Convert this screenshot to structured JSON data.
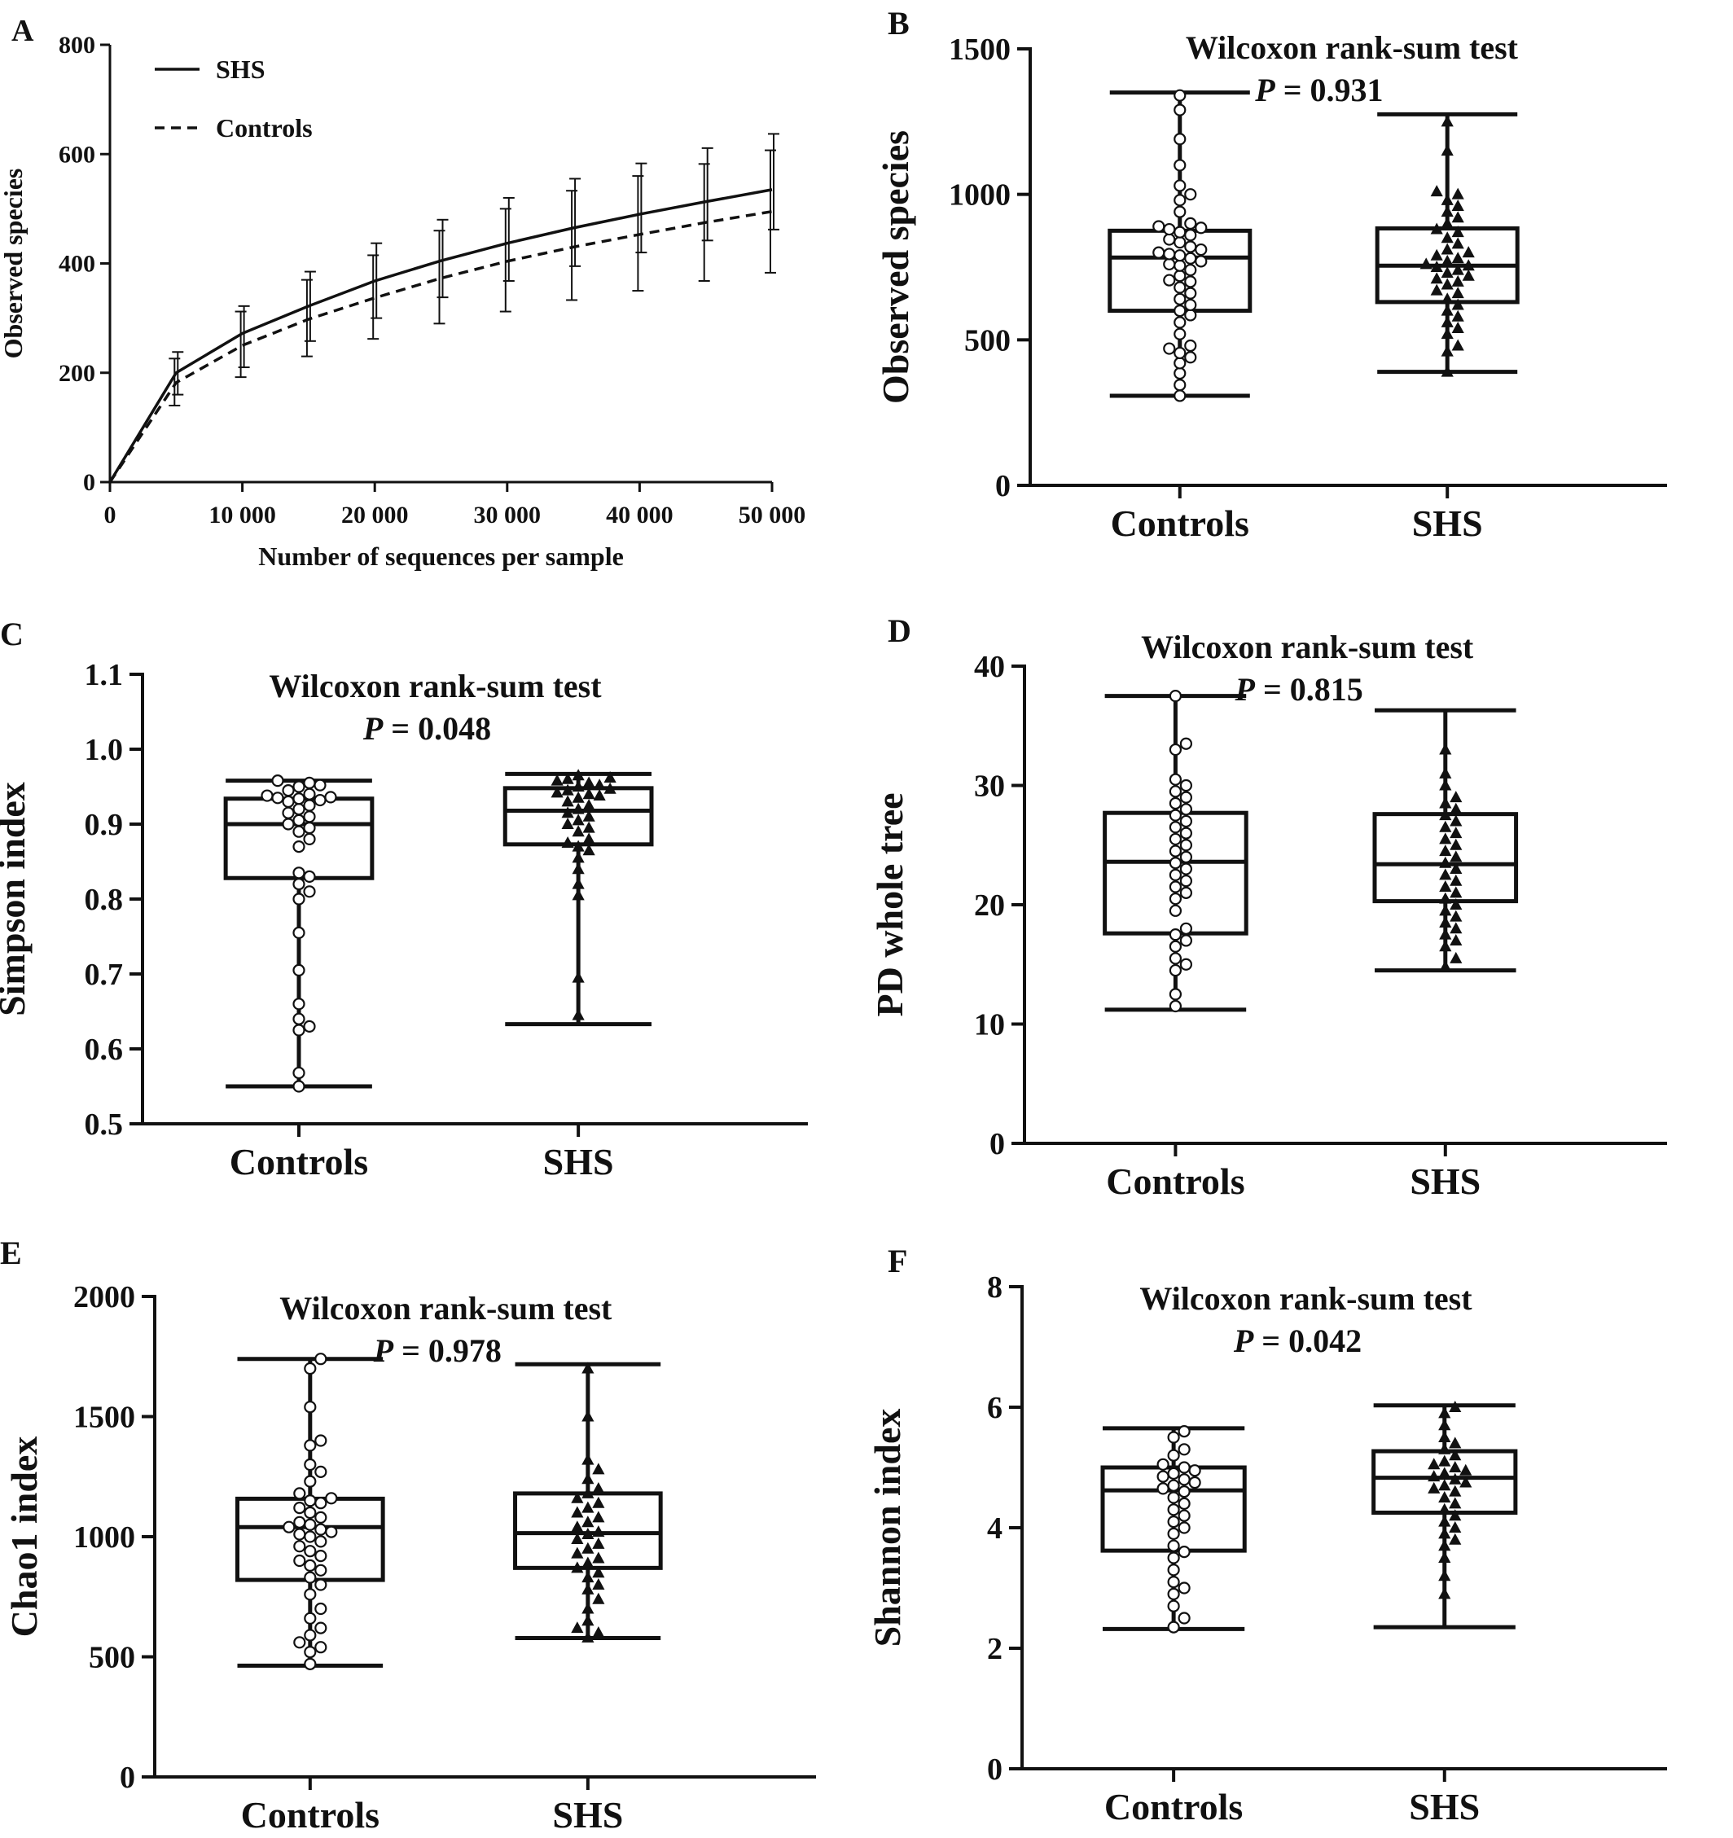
{
  "chart_data": [
    {
      "panel": "A",
      "type": "line",
      "title": "",
      "xlabel": "Number of sequences per sample",
      "ylabel": "Observed species",
      "xlim": [
        0,
        50000
      ],
      "ylim": [
        0,
        800
      ],
      "xticks": [
        0,
        10000,
        20000,
        30000,
        40000,
        50000
      ],
      "xtick_labels": [
        "0",
        "10 000",
        "20 000",
        "30 000",
        "40 000",
        "50 000"
      ],
      "yticks": [
        0,
        200,
        400,
        600,
        800
      ],
      "ytick_labels": [
        "0",
        "200",
        "400",
        "600",
        "800"
      ],
      "legend_position": "top-left",
      "x": [
        0,
        5000,
        10000,
        15000,
        20000,
        25000,
        30000,
        35000,
        40000,
        45000,
        50000
      ],
      "series": [
        {
          "name": "SHS",
          "style": "solid",
          "values": [
            0,
            200,
            272,
            322,
            368,
            405,
            437,
            465,
            490,
            513,
            535
          ],
          "err_low": [
            0,
            160,
            210,
            258,
            300,
            338,
            368,
            395,
            420,
            442,
            462
          ],
          "err_high": [
            0,
            238,
            322,
            385,
            437,
            480,
            520,
            555,
            583,
            611,
            637
          ]
        },
        {
          "name": "Controls",
          "style": "dashed",
          "values": [
            0,
            182,
            250,
            298,
            337,
            373,
            404,
            430,
            453,
            475,
            495
          ],
          "err_low": [
            0,
            140,
            192,
            230,
            262,
            290,
            312,
            333,
            350,
            368,
            383
          ],
          "err_high": [
            0,
            226,
            312,
            370,
            415,
            460,
            500,
            533,
            560,
            582,
            607
          ]
        }
      ]
    },
    {
      "panel": "B",
      "type": "box",
      "ylabel": "Observed species",
      "ylim": [
        0,
        1500
      ],
      "yticks": [
        0,
        500,
        1000,
        1500
      ],
      "ytick_labels": [
        "0",
        "500",
        "1000",
        "1500"
      ],
      "test_label": "Wilcoxon rank-sum test",
      "p_label": "P",
      "p_text": " = 0.931",
      "categories": [
        "Controls",
        "SHS"
      ],
      "groups": [
        {
          "name": "Controls",
          "marker": "circle",
          "min": 308,
          "q1": 600,
          "median": 783,
          "q3": 875,
          "max": 1350,
          "points": [
            308,
            345,
            385,
            420,
            440,
            455,
            470,
            480,
            520,
            560,
            585,
            600,
            620,
            640,
            660,
            680,
            700,
            705,
            720,
            740,
            755,
            760,
            770,
            780,
            790,
            795,
            800,
            810,
            820,
            835,
            845,
            860,
            870,
            880,
            885,
            890,
            900,
            940,
            980,
            1000,
            1030,
            1100,
            1190,
            1290,
            1340
          ]
        },
        {
          "name": "SHS",
          "marker": "triangle",
          "min": 390,
          "q1": 630,
          "median": 755,
          "q3": 883,
          "max": 1275,
          "points": [
            390,
            460,
            480,
            520,
            540,
            560,
            580,
            600,
            620,
            640,
            660,
            670,
            690,
            700,
            710,
            720,
            730,
            740,
            750,
            755,
            760,
            770,
            780,
            790,
            800,
            810,
            830,
            850,
            870,
            880,
            900,
            920,
            940,
            960,
            980,
            1000,
            1010,
            1150,
            1250
          ]
        }
      ]
    },
    {
      "panel": "C",
      "type": "box",
      "ylabel": "Simpson index",
      "ylim": [
        0.5,
        1.1
      ],
      "yticks": [
        0.5,
        0.6,
        0.7,
        0.8,
        0.9,
        1.0,
        1.1
      ],
      "ytick_labels": [
        "0.5",
        "0.6",
        "0.7",
        "0.8",
        "0.9",
        "1.0",
        "1.1"
      ],
      "test_label": "Wilcoxon rank-sum test",
      "p_label": "P",
      "p_text": " = 0.048",
      "categories": [
        "Controls",
        "SHS"
      ],
      "groups": [
        {
          "name": "Controls",
          "marker": "circle",
          "min": 0.55,
          "q1": 0.828,
          "median": 0.9,
          "q3": 0.934,
          "max": 0.958,
          "points": [
            0.55,
            0.568,
            0.625,
            0.63,
            0.64,
            0.66,
            0.705,
            0.755,
            0.8,
            0.81,
            0.82,
            0.83,
            0.835,
            0.87,
            0.88,
            0.89,
            0.895,
            0.9,
            0.905,
            0.91,
            0.915,
            0.92,
            0.925,
            0.93,
            0.932,
            0.934,
            0.935,
            0.936,
            0.938,
            0.94,
            0.945,
            0.95,
            0.952,
            0.955,
            0.958
          ]
        },
        {
          "name": "SHS",
          "marker": "triangle",
          "min": 0.633,
          "q1": 0.873,
          "median": 0.918,
          "q3": 0.948,
          "max": 0.967,
          "points": [
            0.645,
            0.695,
            0.805,
            0.82,
            0.84,
            0.855,
            0.865,
            0.87,
            0.875,
            0.88,
            0.89,
            0.895,
            0.9,
            0.905,
            0.91,
            0.915,
            0.92,
            0.925,
            0.93,
            0.935,
            0.938,
            0.94,
            0.942,
            0.945,
            0.947,
            0.95,
            0.952,
            0.955,
            0.958,
            0.96,
            0.962,
            0.965
          ]
        }
      ]
    },
    {
      "panel": "D",
      "type": "box",
      "ylabel": "PD whole tree",
      "ylim": [
        0,
        40
      ],
      "yticks": [
        0,
        10,
        20,
        30,
        40
      ],
      "ytick_labels": [
        "0",
        "10",
        "20",
        "30",
        "40"
      ],
      "test_label": "Wilcoxon rank-sum test",
      "p_label": "P",
      "p_text": " = 0.815",
      "categories": [
        "Controls",
        "SHS"
      ],
      "groups": [
        {
          "name": "Controls",
          "marker": "circle",
          "min": 11.2,
          "q1": 17.6,
          "median": 23.6,
          "q3": 27.7,
          "max": 37.5,
          "points": [
            11.5,
            12.5,
            14.5,
            15,
            15.5,
            16.5,
            17,
            17.5,
            18,
            19.5,
            20.5,
            21,
            21.5,
            22,
            22.5,
            23,
            23.5,
            24,
            24.5,
            25,
            25.5,
            26,
            26.5,
            27,
            27.5,
            28,
            28.5,
            29,
            29.5,
            30,
            30.5,
            33,
            33.5,
            37.5
          ]
        },
        {
          "name": "SHS",
          "marker": "triangle",
          "min": 14.5,
          "q1": 20.3,
          "median": 23.4,
          "q3": 27.6,
          "max": 36.3,
          "points": [
            14.8,
            15.5,
            16.5,
            17,
            17.5,
            18,
            18.5,
            19,
            19.5,
            20,
            20.5,
            21,
            21.5,
            22,
            22.5,
            23,
            23.5,
            24,
            24.5,
            25,
            25.5,
            26,
            26.5,
            27,
            27.5,
            28,
            28.5,
            29,
            30,
            31,
            33
          ]
        }
      ]
    },
    {
      "panel": "E",
      "type": "box",
      "ylabel": "Chao1 index",
      "ylim": [
        0,
        2000
      ],
      "yticks": [
        0,
        500,
        1000,
        1500,
        2000
      ],
      "ytick_labels": [
        "0",
        "500",
        "1000",
        "1500",
        "2000"
      ],
      "test_label": "Wilcoxon rank-sum test",
      "p_label": "P",
      "p_text": " = 0.978",
      "categories": [
        "Controls",
        "SHS"
      ],
      "groups": [
        {
          "name": "Controls",
          "marker": "circle",
          "min": 463,
          "q1": 820,
          "median": 1040,
          "q3": 1158,
          "max": 1740,
          "points": [
            470,
            520,
            540,
            560,
            590,
            620,
            660,
            700,
            760,
            800,
            830,
            860,
            880,
            900,
            920,
            940,
            960,
            980,
            1000,
            1010,
            1020,
            1030,
            1040,
            1050,
            1060,
            1080,
            1100,
            1120,
            1140,
            1150,
            1160,
            1180,
            1230,
            1270,
            1300,
            1380,
            1400,
            1540,
            1700,
            1740
          ]
        },
        {
          "name": "SHS",
          "marker": "triangle",
          "min": 578,
          "q1": 870,
          "median": 1015,
          "q3": 1180,
          "max": 1718,
          "points": [
            580,
            600,
            620,
            650,
            700,
            740,
            780,
            800,
            830,
            850,
            870,
            890,
            910,
            930,
            950,
            970,
            990,
            1010,
            1020,
            1040,
            1060,
            1080,
            1100,
            1120,
            1140,
            1160,
            1180,
            1200,
            1240,
            1280,
            1320,
            1500,
            1700
          ]
        }
      ]
    },
    {
      "panel": "F",
      "type": "box",
      "ylabel": "Shannon index",
      "ylim": [
        0,
        8
      ],
      "yticks": [
        0,
        2,
        4,
        6,
        8
      ],
      "ytick_labels": [
        "0",
        "2",
        "4",
        "6",
        "8"
      ],
      "test_label": "Wilcoxon rank-sum test",
      "p_label": "P",
      "p_text": " = 0.042",
      "categories": [
        "Controls",
        "SHS"
      ],
      "groups": [
        {
          "name": "Controls",
          "marker": "circle",
          "min": 2.32,
          "q1": 3.62,
          "median": 4.62,
          "q3": 5.0,
          "max": 5.65,
          "points": [
            2.35,
            2.5,
            2.7,
            2.9,
            3.0,
            3.1,
            3.3,
            3.5,
            3.6,
            3.7,
            3.9,
            4.0,
            4.1,
            4.2,
            4.3,
            4.4,
            4.5,
            4.6,
            4.65,
            4.7,
            4.75,
            4.8,
            4.85,
            4.9,
            4.95,
            5.0,
            5.05,
            5.2,
            5.3,
            5.5,
            5.6
          ]
        },
        {
          "name": "SHS",
          "marker": "triangle",
          "min": 2.35,
          "q1": 4.25,
          "median": 4.83,
          "q3": 5.27,
          "max": 6.03,
          "points": [
            2.9,
            3.2,
            3.5,
            3.7,
            3.8,
            3.9,
            4.0,
            4.1,
            4.2,
            4.3,
            4.4,
            4.5,
            4.6,
            4.65,
            4.7,
            4.75,
            4.8,
            4.85,
            4.9,
            4.95,
            5.0,
            5.05,
            5.1,
            5.2,
            5.3,
            5.4,
            5.5,
            5.7,
            5.9,
            6.0
          ]
        }
      ]
    }
  ]
}
